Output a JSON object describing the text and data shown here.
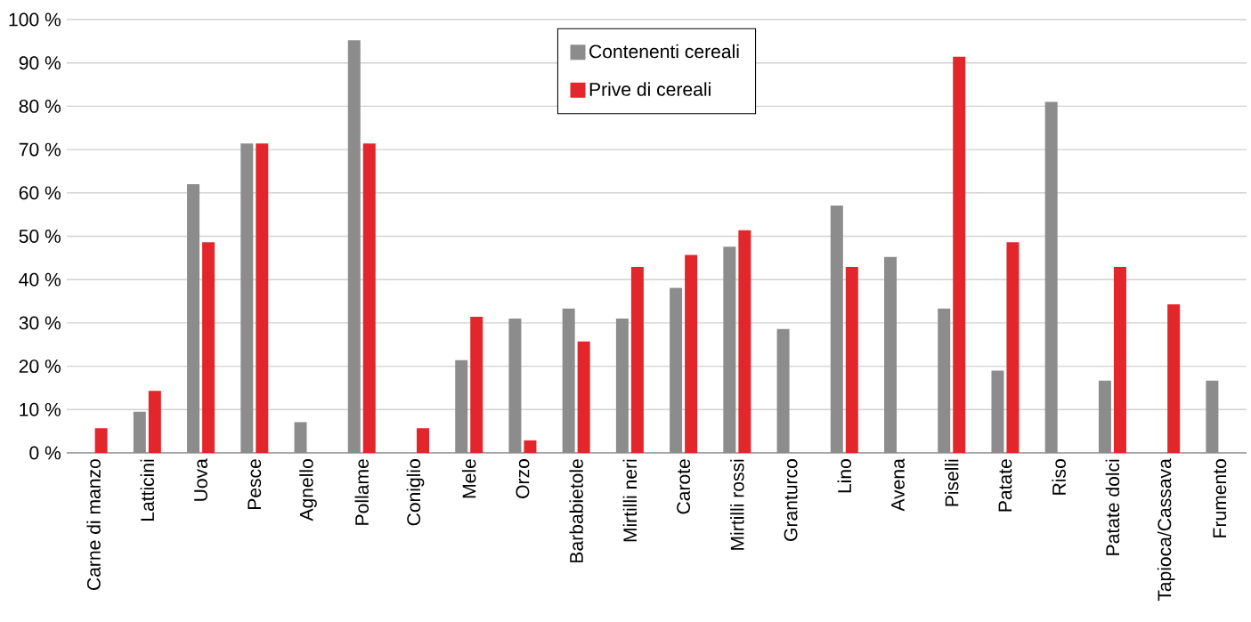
{
  "chart_data": {
    "type": "bar",
    "categories": [
      "Carne di manzo",
      "Latticini",
      "Uova",
      "Pesce",
      "Agnello",
      "Pollame",
      "Coniglio",
      "Mele",
      "Orzo",
      "Barbabietole",
      "Mirtilli neri",
      "Carote",
      "Mirtilli rossi",
      "Granturco",
      "Lino",
      "Avena",
      "Piselli",
      "Patate",
      "Riso",
      "Patate dolci",
      "Tapioca/Cassava",
      "Frumento"
    ],
    "series": [
      {
        "name": "Contenenti cereali",
        "color": "#8c8c8c",
        "values": [
          null,
          9.5,
          62,
          71.4,
          7.1,
          95.2,
          null,
          21.4,
          31,
          33.3,
          31,
          38.1,
          47.6,
          28.6,
          57.1,
          45.2,
          33.3,
          19,
          81,
          16.7,
          null,
          16.7
        ]
      },
      {
        "name": "Prive di cereali",
        "color": "#e3262b",
        "values": [
          5.7,
          14.3,
          48.6,
          71.4,
          null,
          71.4,
          5.7,
          31.4,
          2.9,
          25.7,
          42.9,
          45.7,
          51.4,
          null,
          42.9,
          null,
          91.4,
          48.6,
          null,
          42.9,
          34.3,
          null
        ]
      }
    ],
    "ylim": [
      0,
      100
    ],
    "yticks": [
      {
        "value": 0,
        "label": "0 %"
      },
      {
        "value": 10,
        "label": "10 %"
      },
      {
        "value": 20,
        "label": "20 %"
      },
      {
        "value": 30,
        "label": "30 %"
      },
      {
        "value": 40,
        "label": "40 %"
      },
      {
        "value": 50,
        "label": "50 %"
      },
      {
        "value": 60,
        "label": "60 %"
      },
      {
        "value": 70,
        "label": "70 %"
      },
      {
        "value": 80,
        "label": "80 %"
      },
      {
        "value": 90,
        "label": "90 %"
      },
      {
        "value": 100,
        "label": "100 %"
      }
    ],
    "grid": "y",
    "legend": "top"
  }
}
